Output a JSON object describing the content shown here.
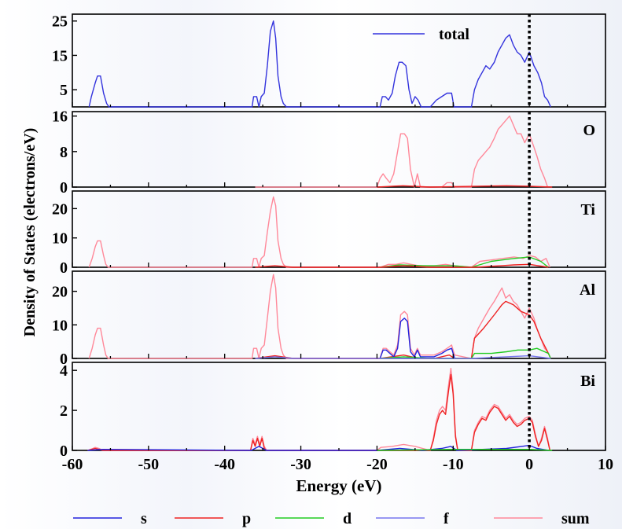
{
  "chart_data": {
    "type": "line",
    "ylabel": "Density of States (electrons/eV)",
    "xlabel": "Energy (eV)",
    "xlim": [
      -60,
      10
    ],
    "xticks": [
      "-60",
      "-50",
      "-40",
      "-30",
      "-20",
      "-10",
      "0",
      "10"
    ],
    "fermi_level": 0,
    "series_colors": {
      "s": "#2222dd",
      "p": "#ee2222",
      "d": "#22cc22",
      "f": "#7777ee",
      "sum": "#ff8899",
      "total": "#3333dd"
    },
    "legend": [
      "s",
      "p",
      "d",
      "f",
      "sum"
    ],
    "panels": [
      {
        "label": "",
        "ylim": [
          0,
          27
        ],
        "yticks": [
          "5",
          "15",
          "25"
        ],
        "ytick_values": [
          5,
          15,
          25
        ],
        "legend_entry": "total",
        "series": [
          {
            "name": "total",
            "color": "#3333dd",
            "x": [
              -57.8,
              -57.5,
              -57.0,
              -56.7,
              -56.3,
              -55.9,
              -55.5,
              -55.2,
              -36.4,
              -36.2,
              -35.8,
              -35.5,
              -35.2,
              -34.8,
              -34.4,
              -34.0,
              -33.6,
              -33.3,
              -33.0,
              -32.6,
              -32.3,
              -31.9,
              -19.6,
              -19.3,
              -18.9,
              -18.5,
              -18.0,
              -17.6,
              -17.1,
              -16.7,
              -16.2,
              -15.8,
              -15.4,
              -15.0,
              -14.6,
              -14.2,
              -13.0,
              -12.2,
              -11.5,
              -10.8,
              -10.2,
              -9.9,
              -7.6,
              -7.2,
              -6.7,
              -6.2,
              -5.7,
              -5.2,
              -4.6,
              -4.1,
              -3.6,
              -3.1,
              -2.6,
              -2.1,
              -1.6,
              -1.1,
              -0.6,
              0.0,
              0.6,
              1.1,
              1.6,
              2.0,
              2.4,
              2.8
            ],
            "y": [
              0,
              3,
              7,
              9,
              9,
              4,
              1,
              0,
              0,
              3,
              3,
              0,
              3,
              4,
              12,
              22,
              25,
              20,
              9,
              3,
              1,
              0,
              0,
              3,
              3,
              2,
              4,
              9,
              13,
              13,
              12,
              5,
              1,
              3,
              2,
              0,
              0,
              2,
              3,
              4,
              4,
              0,
              0,
              5,
              8,
              10,
              12,
              11,
              13,
              16,
              18,
              20,
              21,
              18,
              16,
              15,
              13,
              16,
              12,
              10,
              7,
              3,
              2,
              0
            ]
          }
        ]
      },
      {
        "label": "O",
        "ylim": [
          0,
          17
        ],
        "yticks": [
          "0",
          "8",
          "16"
        ],
        "ytick_values": [
          0,
          8,
          16
        ],
        "series": [
          {
            "name": "sum",
            "color": "#ff8899",
            "x": [
              -36.0,
              -35.0,
              -20.0,
              -19.6,
              -19.2,
              -18.8,
              -18.3,
              -17.8,
              -17.3,
              -16.9,
              -16.4,
              -16.0,
              -15.6,
              -15.1,
              -14.7,
              -14.3,
              -13.5,
              -12.5,
              -11.5,
              -10.8,
              -10.2,
              -9.8,
              -7.6,
              -7.2,
              -6.7,
              -6.2,
              -5.7,
              -5.2,
              -4.6,
              -4.1,
              -3.6,
              -3.1,
              -2.6,
              -2.1,
              -1.6,
              -1.1,
              -0.6,
              0.0,
              0.6,
              1.0,
              1.5,
              2.0,
              2.4
            ],
            "y": [
              0,
              0,
              0,
              2,
              3,
              2,
              1,
              3,
              8,
              12,
              12,
              11,
              4,
              0,
              3,
              0,
              0,
              0,
              0,
              1,
              1,
              0,
              0,
              4,
              6,
              7,
              8,
              9,
              11,
              13,
              14,
              15,
              16,
              14,
              12,
              12,
              10,
              12,
              9,
              7,
              4,
              2,
              0
            ]
          },
          {
            "name": "p",
            "color": "#ee2222",
            "x": [
              -20,
              -16.6,
              -13,
              -3,
              0,
              3
            ],
            "y": [
              0,
              0.3,
              0,
              0.3,
              0.2,
              0
            ]
          }
        ]
      },
      {
        "label": "Ti",
        "ylim": [
          0,
          26
        ],
        "yticks": [
          "0",
          "10",
          "20"
        ],
        "ytick_values": [
          0,
          10,
          20
        ],
        "series": [
          {
            "name": "sum",
            "color": "#ff8899",
            "x": [
              -57.8,
              -57.4,
              -57.0,
              -56.7,
              -56.3,
              -55.9,
              -55.6,
              -55.3,
              -36.4,
              -36.2,
              -35.8,
              -35.5,
              -35.2,
              -34.8,
              -34.4,
              -34.0,
              -33.6,
              -33.3,
              -33.0,
              -32.6,
              -32.3,
              -31.9,
              -19.6,
              -18.5,
              -17.5,
              -16.5,
              -15.5,
              -14.5,
              -12.5,
              -11,
              -9.8,
              -7.6,
              -6.5,
              -5.0,
              -3.5,
              -2.0,
              -0.8,
              0.0,
              0.8,
              1.5,
              2.2,
              2.7
            ],
            "y": [
              0,
              3,
              7,
              9,
              9,
              4,
              1,
              0,
              0,
              3,
              3,
              0,
              3,
              4,
              12,
              19,
              24,
              21,
              9,
              3,
              1,
              0,
              0,
              1,
              1,
              1.5,
              1,
              0.5,
              0.5,
              1,
              0.5,
              0,
              2,
              2.5,
              3,
              3.5,
              3,
              4,
              3.5,
              2,
              3,
              0
            ]
          },
          {
            "name": "d",
            "color": "#22cc22",
            "x": [
              -19.6,
              -17,
              -14,
              -10,
              -7.6,
              -5,
              -2,
              0,
              1.5,
              2.5
            ],
            "y": [
              0,
              0.8,
              0.5,
              0.5,
              0,
              2,
              3,
              3.5,
              2,
              0
            ]
          },
          {
            "name": "p",
            "color": "#ee2222",
            "x": [
              -36,
              -33.4,
              -31,
              -19.6,
              -16.5,
              -13,
              -7,
              -2,
              0,
              2.5
            ],
            "y": [
              0,
              0.5,
              0,
              0,
              0.5,
              0,
              0,
              0.8,
              1,
              0
            ]
          }
        ]
      },
      {
        "label": "Al",
        "ylim": [
          0,
          26
        ],
        "yticks": [
          "0",
          "10",
          "20"
        ],
        "ytick_values": [
          0,
          10,
          20
        ],
        "series": [
          {
            "name": "sum",
            "color": "#ff8899",
            "x": [
              -57.8,
              -57.4,
              -57.0,
              -56.7,
              -56.3,
              -55.9,
              -55.6,
              -55.3,
              -36.4,
              -36.2,
              -35.8,
              -35.5,
              -35.2,
              -34.8,
              -34.4,
              -34.0,
              -33.6,
              -33.3,
              -33.0,
              -32.6,
              -32.3,
              -31.9,
              -19.6,
              -19.2,
              -18.8,
              -18.3,
              -17.8,
              -17.3,
              -16.9,
              -16.4,
              -16.0,
              -15.6,
              -15.1,
              -14.7,
              -14.3,
              -12.5,
              -11.5,
              -10.8,
              -10.2,
              -9.8,
              -7.6,
              -7.2,
              -6.7,
              -6.2,
              -5.7,
              -5.2,
              -4.6,
              -4.1,
              -3.6,
              -3.1,
              -2.6,
              -2.1,
              -1.6,
              -1.1,
              -0.6,
              0.0,
              0.6,
              1.0,
              1.5,
              2.0,
              2.4,
              2.8
            ],
            "y": [
              0,
              3,
              7,
              9,
              9,
              4,
              1,
              0,
              0,
              3,
              3,
              0,
              3,
              4,
              12,
              20,
              25,
              21,
              9,
              3,
              1,
              0,
              0,
              3,
              3,
              2,
              1,
              4,
              13,
              14,
              13,
              3,
              1,
              3,
              1,
              1,
              2,
              3,
              4,
              1,
              0,
              6,
              9,
              11,
              13,
              15,
              17,
              19,
              21,
              18,
              19,
              17,
              16,
              14,
              12,
              15,
              12,
              9,
              6,
              3,
              2,
              0
            ]
          },
          {
            "name": "p",
            "color": "#ee2222",
            "x": [
              -36,
              -33.4,
              -31,
              -19.6,
              -16.5,
              -14.5,
              -12.5,
              -10.5,
              -9.8,
              -7.6,
              -7.2,
              -6.0,
              -4.6,
              -3.6,
              -3.1,
              -2.1,
              -1.1,
              0.0,
              0.6,
              1.5,
              2.4,
              2.8
            ],
            "y": [
              0,
              0.8,
              0,
              0,
              1,
              0,
              0,
              1,
              0,
              0,
              6,
              9,
              13,
              16,
              17,
              16,
              14,
              13,
              11,
              6,
              2,
              0
            ]
          },
          {
            "name": "s",
            "color": "#2222dd",
            "x": [
              -19.6,
              -19.2,
              -18.8,
              -18.3,
              -17.8,
              -17.3,
              -16.9,
              -16.4,
              -16.0,
              -15.6,
              -15.1,
              -14.7,
              -14.3,
              -12.5,
              -11.5,
              -10.8,
              -10.2,
              -9.8
            ],
            "y": [
              0,
              2.5,
              2.5,
              1.5,
              0.5,
              3,
              11,
              12,
              11,
              2,
              0.5,
              2.5,
              0.5,
              0.5,
              1.5,
              2.5,
              3,
              0
            ]
          },
          {
            "name": "d",
            "color": "#22cc22",
            "x": [
              -19.6,
              -16.5,
              -13,
              -7.6,
              -7.2,
              -5,
              -3,
              -1.5,
              0,
              1,
              2.5,
              2.8
            ],
            "y": [
              0,
              0.5,
              0,
              0,
              1.5,
              1.5,
              2,
              2.5,
              2.5,
              3,
              1.5,
              0
            ]
          },
          {
            "name": "f",
            "color": "#7777ee",
            "x": [
              -36,
              -33.4,
              -31,
              -7.6,
              -3,
              0,
              2.8
            ],
            "y": [
              0,
              0.5,
              0,
              0,
              0.5,
              0.8,
              0
            ]
          }
        ]
      },
      {
        "label": "Bi",
        "ylim": [
          0,
          4.4
        ],
        "yticks": [
          "0",
          "2",
          "4"
        ],
        "ytick_values": [
          0,
          2,
          4
        ],
        "series": [
          {
            "name": "sum",
            "color": "#ff8899",
            "x": [
              -58,
              -57.3,
              -57.0,
              -56.5,
              -56.0,
              -36.6,
              -36.3,
              -36.0,
              -35.7,
              -35.4,
              -35.1,
              -34.8,
              -34.5,
              -20.0,
              -19.5,
              -18.0,
              -16.5,
              -15.0,
              -14.0,
              -13.0,
              -12.6,
              -12.2,
              -11.8,
              -11.4,
              -11.0,
              -10.6,
              -10.3,
              -10.0,
              -9.7,
              -9.4,
              -7.6,
              -7.2,
              -6.7,
              -6.2,
              -5.7,
              -5.2,
              -4.6,
              -4.1,
              -3.6,
              -3.1,
              -2.6,
              -2.1,
              -1.6,
              -1.1,
              -0.6,
              0.0,
              0.4,
              0.8,
              1.2,
              1.6,
              2.0,
              2.4,
              2.7
            ],
            "y": [
              0,
              0.1,
              0.15,
              0.1,
              0,
              0,
              0.6,
              0.3,
              0.7,
              0.3,
              0.7,
              0.2,
              0,
              0,
              0.15,
              0.2,
              0.3,
              0.2,
              0.1,
              0,
              0.6,
              1.5,
              2.0,
              2.2,
              2.0,
              3.3,
              4.1,
              3.0,
              0.8,
              0,
              0,
              1.0,
              1.4,
              1.7,
              1.6,
              2.0,
              2.3,
              2.2,
              1.9,
              1.6,
              1.8,
              1.5,
              1.3,
              1.4,
              1.6,
              1.7,
              1.5,
              0.8,
              0.2,
              0.6,
              1.2,
              0.6,
              0
            ]
          },
          {
            "name": "p",
            "color": "#ee2222",
            "x": [
              -58,
              -57,
              -56,
              -36.6,
              -36.3,
              -36.0,
              -35.7,
              -35.4,
              -35.1,
              -34.8,
              -34.5,
              -14,
              -13.0,
              -12.6,
              -12.2,
              -11.8,
              -11.4,
              -11.0,
              -10.6,
              -10.3,
              -10.0,
              -9.7,
              -9.4,
              -7.6,
              -7.2,
              -6.7,
              -6.2,
              -5.7,
              -5.2,
              -4.6,
              -4.1,
              -3.6,
              -3.1,
              -2.6,
              -2.1,
              -1.6,
              -1.1,
              -0.6,
              0.0,
              0.4,
              0.8,
              1.2,
              1.6,
              2.0,
              2.4,
              2.7
            ],
            "y": [
              0,
              0.1,
              0,
              0,
              0.5,
              0.2,
              0.6,
              0.2,
              0.6,
              0.1,
              0,
              0,
              0,
              0.5,
              1.3,
              1.8,
              2.0,
              1.8,
              3.0,
              3.8,
              2.8,
              0.7,
              0,
              0,
              0.9,
              1.3,
              1.6,
              1.5,
              1.9,
              2.2,
              2.1,
              1.8,
              1.5,
              1.7,
              1.4,
              1.2,
              1.3,
              1.5,
              1.6,
              1.4,
              0.7,
              0.2,
              0.5,
              1.1,
              0.5,
              0
            ]
          },
          {
            "name": "s",
            "color": "#2222dd",
            "x": [
              -58,
              -56,
              -36.5,
              -35.5,
              -34.5,
              -20,
              -17,
              -14,
              -11.5,
              -10.3,
              -9.5,
              -3,
              -1,
              0,
              1,
              2.5
            ],
            "y": [
              0,
              0.05,
              0,
              0.2,
              0,
              0,
              0.1,
              0,
              0.1,
              0.2,
              0,
              0.1,
              0.2,
              0.25,
              0.1,
              0
            ]
          },
          {
            "name": "d",
            "color": "#22cc22",
            "x": [
              -20,
              -10,
              0,
              3
            ],
            "y": [
              0,
              0.05,
              0.05,
              0
            ]
          }
        ]
      }
    ]
  }
}
